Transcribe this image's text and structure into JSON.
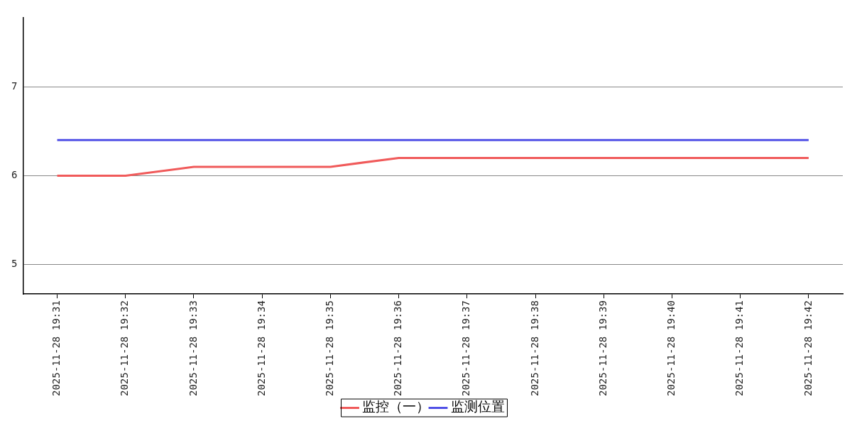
{
  "chart_data": {
    "type": "line",
    "categories": [
      "2025-11-28 19:31",
      "2025-11-28 19:32",
      "2025-11-28 19:33",
      "2025-11-28 19:34",
      "2025-11-28 19:35",
      "2025-11-28 19:36",
      "2025-11-28 19:37",
      "2025-11-28 19:38",
      "2025-11-28 19:39",
      "2025-11-28 19:40",
      "2025-11-28 19:41",
      "2025-11-28 19:42"
    ],
    "series": [
      {
        "name": "监控（一）",
        "color": "#f05a5a",
        "values": [
          6.0,
          6.0,
          6.1,
          6.1,
          6.1,
          6.2,
          6.2,
          6.2,
          6.2,
          6.2,
          6.2,
          6.2
        ]
      },
      {
        "name": "监测位置",
        "color": "#5050e6",
        "values": [
          6.4,
          6.4,
          6.4,
          6.4,
          6.4,
          6.4,
          6.4,
          6.4,
          6.4,
          6.4,
          6.4,
          6.4
        ]
      }
    ],
    "ylim": [
      4.67,
      7.78
    ],
    "yticks": [
      5,
      6,
      7
    ],
    "grid": "y",
    "legend": "bottom",
    "marker": "none",
    "line_style": "solid"
  }
}
